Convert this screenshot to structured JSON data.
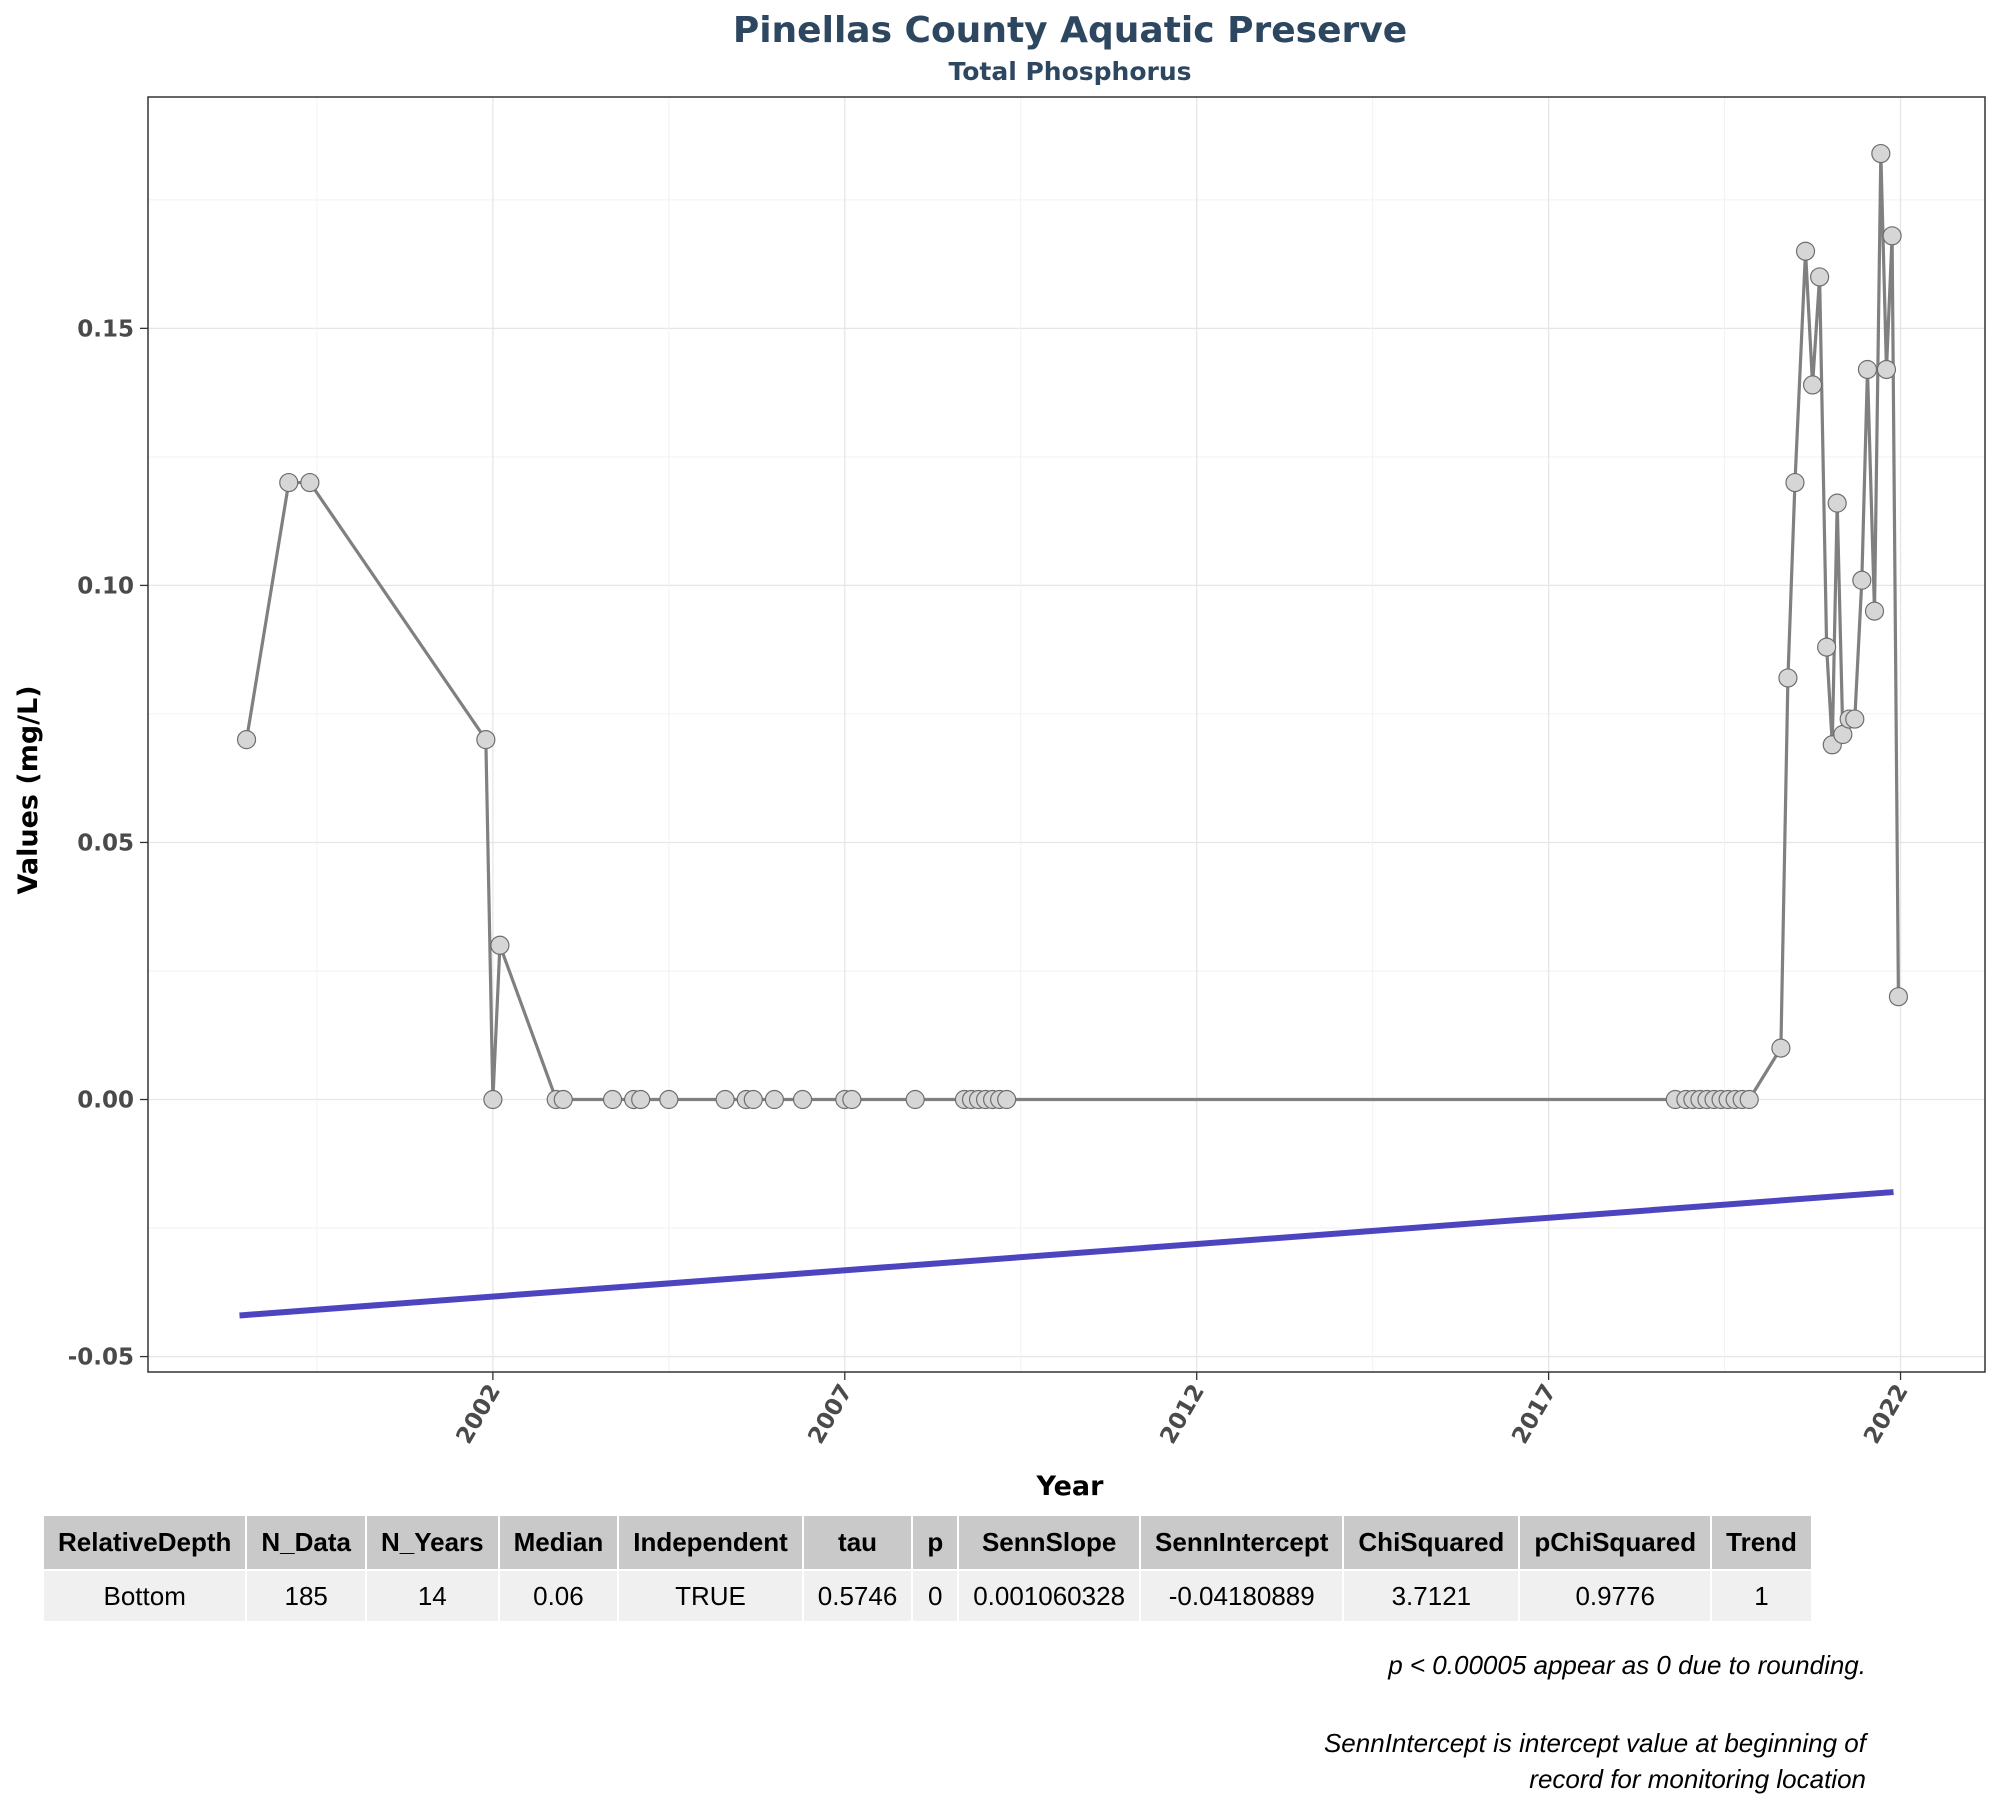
{
  "chart_data": {
    "type": "line",
    "title": "Pinellas County Aquatic Preserve",
    "subtitle": "Total Phosphorus",
    "xlabel": "Year",
    "ylabel": "Values (mg/L)",
    "xlim": [
      1997.1,
      2023.2
    ],
    "ylim": [
      -0.053,
      0.195
    ],
    "xticks": [
      2002,
      2007,
      2012,
      2017,
      2022
    ],
    "yticks": [
      -0.05,
      0.0,
      0.05,
      0.1,
      0.15
    ],
    "ytick_labels": [
      "-0.05",
      "0.00",
      "0.05",
      "0.10",
      "0.15"
    ],
    "grid": true,
    "series": [
      {
        "x": [
          1998.5,
          1999.1,
          1999.4,
          2001.9,
          2002.0,
          2002.1,
          2002.9,
          2003.0,
          2003.7,
          2004.0,
          2004.1,
          2004.5,
          2005.3,
          2005.6,
          2005.7,
          2006.0,
          2006.4,
          2007.0,
          2007.1,
          2008.0,
          2008.7,
          2008.8,
          2008.9,
          2009.0,
          2009.1,
          2009.2,
          2009.3,
          2018.8,
          2018.95,
          2019.05,
          2019.15,
          2019.25,
          2019.35,
          2019.45,
          2019.55,
          2019.65,
          2019.75,
          2019.85,
          2020.3,
          2020.4,
          2020.5,
          2020.65,
          2020.75,
          2020.85,
          2020.95,
          2021.03,
          2021.1,
          2021.18,
          2021.27,
          2021.35,
          2021.45,
          2021.53,
          2021.63,
          2021.72,
          2021.8,
          2021.88,
          2021.97
        ],
        "y": [
          0.07,
          0.12,
          0.12,
          0.07,
          0.0,
          0.03,
          0.0,
          0.0,
          0.0,
          0.0,
          0.0,
          0.0,
          0.0,
          0.0,
          0.0,
          0.0,
          0.0,
          0.0,
          0.0,
          0.0,
          0.0,
          0.0,
          0.0,
          0.0,
          0.0,
          0.0,
          0.0,
          0.0,
          0.0,
          0.0,
          0.0,
          0.0,
          0.0,
          0.0,
          0.0,
          0.0,
          0.0,
          0.0,
          0.01,
          0.082,
          0.12,
          0.165,
          0.139,
          0.16,
          0.088,
          0.069,
          0.116,
          0.071,
          0.074,
          0.074,
          0.101,
          0.142,
          0.095,
          0.184,
          0.142,
          0.168,
          0.02
        ],
        "color": "#808080"
      },
      {
        "x": [
          1998.4,
          2021.9
        ],
        "y": [
          -0.042,
          -0.018
        ],
        "color": "#4c45bf"
      }
    ]
  },
  "table": {
    "headers": [
      "RelativeDepth",
      "N_Data",
      "N_Years",
      "Median",
      "Independent",
      "tau",
      "p",
      "SennSlope",
      "SennIntercept",
      "ChiSquared",
      "pChiSquared",
      "Trend"
    ],
    "rows": [
      [
        "Bottom",
        "185",
        "14",
        "0.06",
        "TRUE",
        "0.5746",
        "0",
        "0.001060328",
        "-0.04180889",
        "3.7121",
        "0.9776",
        "1"
      ]
    ]
  },
  "notes": {
    "rounding": "p < 0.00005 appear as 0 due to rounding.",
    "intercept_line1": "SennIntercept is intercept value at beginning of",
    "intercept_line2": "record for monitoring location"
  }
}
